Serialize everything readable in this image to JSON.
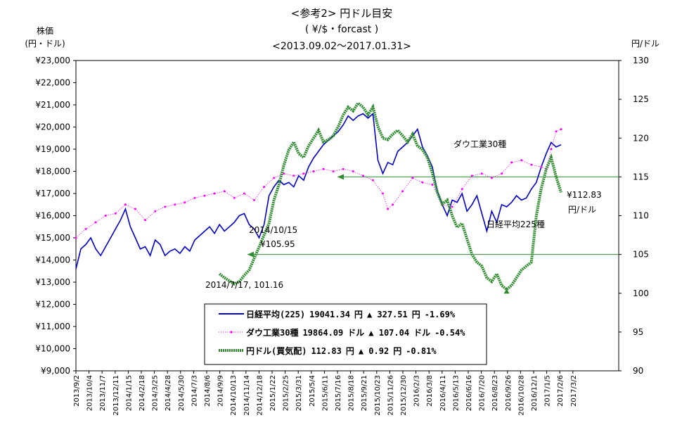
{
  "chart_data": {
    "type": "line",
    "title": "<参考2> 円ドル目安",
    "subtitle": "( ¥/$・forcast )",
    "period": "<2013.09.02～2017.01.31>",
    "left_axis": {
      "label_line1": "株価",
      "label_line2": "(円・ドル)",
      "ylim": [
        9000,
        23000
      ],
      "ticks": [
        "¥9,000",
        "¥10,000",
        "¥11,000",
        "¥12,000",
        "¥13,000",
        "¥14,000",
        "¥15,000",
        "¥16,000",
        "¥17,000",
        "¥18,000",
        "¥19,000",
        "¥20,000",
        "¥21,000",
        "¥22,000",
        "¥23,000"
      ]
    },
    "right_axis": {
      "label": "円/ドル",
      "ylim": [
        90,
        130
      ],
      "ticks": [
        "90",
        "95",
        "100",
        "105",
        "110",
        "115",
        "120",
        "125",
        "130"
      ]
    },
    "x_ticks": [
      "2013/9/2",
      "2013/10/4",
      "2013/11/7",
      "2013/12/11",
      "2014/1/15",
      "2014/2/18",
      "2014/3/25",
      "2014/4/28",
      "2014/5/30",
      "2014/7/3",
      "2014/8/6",
      "2014/9/9",
      "2014/10/13",
      "2014/11/14",
      "2014/12/18",
      "2015/1/22",
      "2015/2/25",
      "2015/3/31",
      "2015/5/4",
      "2015/6/11",
      "2015/7/16",
      "2015/8/18",
      "2015/9/21",
      "2015/10/23",
      "2015/11/26",
      "2015/12/30",
      "2016/2/3",
      "2016/3/8",
      "2016/4/11",
      "2016/5/13",
      "2016/6/16",
      "2016/7/20",
      "2016/8/23",
      "2016/9/26",
      "2016/10/28",
      "2016/12/1",
      "2017/1/5",
      "2017/2/6",
      "2017/3/2"
    ],
    "series": [
      {
        "name": "日経平均(225)",
        "axis": "left",
        "color": "#0000cc",
        "style": "line",
        "points": [
          [
            0,
            13600
          ],
          [
            1,
            14500
          ],
          [
            2,
            14700
          ],
          [
            3,
            15000
          ],
          [
            4,
            14500
          ],
          [
            5,
            14200
          ],
          [
            6,
            14600
          ],
          [
            7,
            15000
          ],
          [
            8,
            15400
          ],
          [
            9,
            15800
          ],
          [
            10,
            16300
          ],
          [
            11,
            15500
          ],
          [
            12,
            15000
          ],
          [
            13,
            14500
          ],
          [
            14,
            14600
          ],
          [
            15,
            14200
          ],
          [
            16,
            14900
          ],
          [
            17,
            14700
          ],
          [
            18,
            14200
          ],
          [
            19,
            14400
          ],
          [
            20,
            14500
          ],
          [
            21,
            14300
          ],
          [
            22,
            14600
          ],
          [
            23,
            14400
          ],
          [
            24,
            14900
          ],
          [
            25,
            15100
          ],
          [
            26,
            15300
          ],
          [
            27,
            15500
          ],
          [
            28,
            15200
          ],
          [
            29,
            15600
          ],
          [
            30,
            15300
          ],
          [
            31,
            15500
          ],
          [
            32,
            15700
          ],
          [
            33,
            16000
          ],
          [
            34,
            16100
          ],
          [
            35,
            15600
          ],
          [
            36,
            15400
          ],
          [
            37,
            15000
          ],
          [
            38,
            15600
          ],
          [
            39,
            16900
          ],
          [
            40,
            17300
          ],
          [
            41,
            17600
          ],
          [
            42,
            17400
          ],
          [
            43,
            17500
          ],
          [
            44,
            17300
          ],
          [
            45,
            17800
          ],
          [
            46,
            17600
          ],
          [
            47,
            18200
          ],
          [
            48,
            18600
          ],
          [
            49,
            18900
          ],
          [
            50,
            19200
          ],
          [
            51,
            19400
          ],
          [
            52,
            19600
          ],
          [
            53,
            19800
          ],
          [
            54,
            20100
          ],
          [
            55,
            20500
          ],
          [
            56,
            20300
          ],
          [
            57,
            20500
          ],
          [
            58,
            20600
          ],
          [
            59,
            20400
          ],
          [
            60,
            20600
          ],
          [
            61,
            18500
          ],
          [
            62,
            17900
          ],
          [
            63,
            18400
          ],
          [
            64,
            18300
          ],
          [
            65,
            18900
          ],
          [
            66,
            19100
          ],
          [
            67,
            19300
          ],
          [
            68,
            19600
          ],
          [
            69,
            19900
          ],
          [
            70,
            19100
          ],
          [
            71,
            18700
          ],
          [
            72,
            18200
          ],
          [
            73,
            17100
          ],
          [
            74,
            16500
          ],
          [
            75,
            16000
          ],
          [
            76,
            16700
          ],
          [
            77,
            16600
          ],
          [
            78,
            17000
          ],
          [
            79,
            16200
          ],
          [
            80,
            16500
          ],
          [
            81,
            16900
          ],
          [
            82,
            16100
          ],
          [
            83,
            15300
          ],
          [
            84,
            16200
          ],
          [
            85,
            15700
          ],
          [
            86,
            16500
          ],
          [
            87,
            16400
          ],
          [
            88,
            16600
          ],
          [
            89,
            16900
          ],
          [
            90,
            16700
          ],
          [
            91,
            16800
          ],
          [
            92,
            17200
          ],
          [
            93,
            17500
          ],
          [
            94,
            18200
          ],
          [
            95,
            18800
          ],
          [
            96,
            19300
          ],
          [
            97,
            19100
          ],
          [
            98,
            19200
          ]
        ]
      },
      {
        "name": "ダウ工業30種",
        "axis": "left",
        "color": "#ff00ff",
        "style": "dotted",
        "points": [
          [
            0,
            15000
          ],
          [
            2,
            15400
          ],
          [
            4,
            15700
          ],
          [
            6,
            16000
          ],
          [
            8,
            16100
          ],
          [
            10,
            16500
          ],
          [
            12,
            16300
          ],
          [
            14,
            15800
          ],
          [
            16,
            16200
          ],
          [
            18,
            16400
          ],
          [
            20,
            16500
          ],
          [
            22,
            16600
          ],
          [
            24,
            16800
          ],
          [
            26,
            16900
          ],
          [
            28,
            17000
          ],
          [
            30,
            17100
          ],
          [
            32,
            16800
          ],
          [
            34,
            17000
          ],
          [
            36,
            16700
          ],
          [
            38,
            17300
          ],
          [
            40,
            17700
          ],
          [
            42,
            17900
          ],
          [
            44,
            17800
          ],
          [
            46,
            17900
          ],
          [
            48,
            18000
          ],
          [
            50,
            18100
          ],
          [
            52,
            18000
          ],
          [
            54,
            18100
          ],
          [
            56,
            18000
          ],
          [
            58,
            17800
          ],
          [
            60,
            17600
          ],
          [
            62,
            17000
          ],
          [
            63,
            16300
          ],
          [
            64,
            16500
          ],
          [
            66,
            17100
          ],
          [
            68,
            17700
          ],
          [
            70,
            17500
          ],
          [
            72,
            17400
          ],
          [
            74,
            16500
          ],
          [
            76,
            16400
          ],
          [
            78,
            17200
          ],
          [
            80,
            17800
          ],
          [
            82,
            17900
          ],
          [
            84,
            17700
          ],
          [
            86,
            17900
          ],
          [
            88,
            18400
          ],
          [
            90,
            18500
          ],
          [
            92,
            18300
          ],
          [
            94,
            18200
          ],
          [
            95,
            18100
          ],
          [
            96,
            19000
          ],
          [
            97,
            19800
          ],
          [
            98,
            19900
          ]
        ]
      },
      {
        "name": "円ドル(買気配)",
        "axis": "right",
        "color": "#2e8b2e",
        "style": "marker",
        "points": [
          [
            29,
            102.5
          ],
          [
            30,
            102.0
          ],
          [
            31,
            101.6
          ],
          [
            32,
            101.2
          ],
          [
            33,
            101.5
          ],
          [
            34,
            102.3
          ],
          [
            35,
            103.0
          ],
          [
            36,
            104.5
          ],
          [
            37,
            105.95
          ],
          [
            38,
            107.5
          ],
          [
            39,
            109.0
          ],
          [
            40,
            112.0
          ],
          [
            41,
            114.0
          ],
          [
            42,
            116.5
          ],
          [
            43,
            118.5
          ],
          [
            44,
            119.5
          ],
          [
            45,
            118.0
          ],
          [
            46,
            117.5
          ],
          [
            47,
            119.0
          ],
          [
            48,
            120.0
          ],
          [
            49,
            121.0
          ],
          [
            50,
            119.5
          ],
          [
            51,
            119.8
          ],
          [
            52,
            120.3
          ],
          [
            53,
            121.5
          ],
          [
            54,
            123.0
          ],
          [
            55,
            124.0
          ],
          [
            56,
            123.5
          ],
          [
            57,
            124.5
          ],
          [
            58,
            124.0
          ],
          [
            59,
            123.0
          ],
          [
            60,
            124.0
          ],
          [
            61,
            121.5
          ],
          [
            62,
            120.0
          ],
          [
            63,
            119.8
          ],
          [
            64,
            120.5
          ],
          [
            65,
            121.0
          ],
          [
            66,
            120.3
          ],
          [
            67,
            119.5
          ],
          [
            68,
            120.5
          ],
          [
            69,
            119.0
          ],
          [
            70,
            118.5
          ],
          [
            71,
            117.5
          ],
          [
            72,
            115.5
          ],
          [
            73,
            113.0
          ],
          [
            74,
            111.5
          ],
          [
            75,
            112.0
          ],
          [
            76,
            110.0
          ],
          [
            77,
            108.5
          ],
          [
            78,
            109.0
          ],
          [
            79,
            107.0
          ],
          [
            80,
            105.0
          ],
          [
            81,
            104.0
          ],
          [
            82,
            103.5
          ],
          [
            83,
            102.0
          ],
          [
            84,
            101.5
          ],
          [
            85,
            102.5
          ],
          [
            86,
            101.0
          ],
          [
            87,
            100.5
          ],
          [
            88,
            101.0
          ],
          [
            89,
            102.0
          ],
          [
            90,
            103.0
          ],
          [
            91,
            103.5
          ],
          [
            92,
            104.0
          ],
          [
            93,
            110.0
          ],
          [
            94,
            113.5
          ],
          [
            95,
            116.0
          ],
          [
            96,
            117.5
          ],
          [
            97,
            115.0
          ],
          [
            98,
            113.0
          ]
        ]
      }
    ],
    "annotations": {
      "low_label": "2014/7/17, 101.16",
      "oct_date": "2014/10/15",
      "oct_value": "¥105.95",
      "dow_label": "ダウ工業30種",
      "nikkei_label": "日経平均225種",
      "yen_value": "¥112.83",
      "yen_unit": "円/ドル"
    },
    "reference_lines": [
      115,
      105
    ],
    "legend": {
      "placement": "bottom-center",
      "rows": [
        {
          "label": "日経平均(225)",
          "value": "19041.34",
          "unit": "円",
          "change": "▲ 327.51",
          "change_unit": "円",
          "pct": "-1.69%"
        },
        {
          "label": "ダウ工業30種",
          "value": "19864.09",
          "unit": "ドル",
          "change": "▲ 107.04",
          "change_unit": "ドル",
          "pct": "-0.54%"
        },
        {
          "label": "円ドル(買気配)",
          "value": "112.83",
          "unit": "円",
          "change": "▲ 0.92",
          "change_unit": "円",
          "pct": "-0.81%"
        }
      ]
    }
  }
}
